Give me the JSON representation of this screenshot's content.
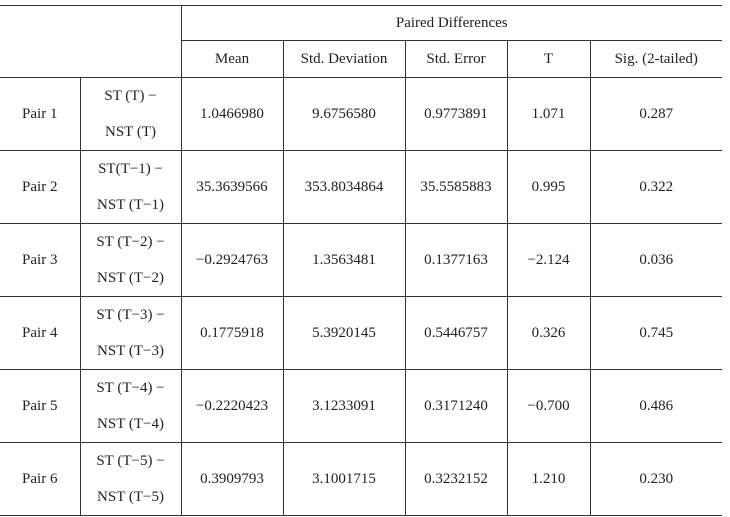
{
  "table": {
    "group_header": "Paired Differences",
    "columns": [
      "Mean",
      "Std. Deviation",
      "Std. Error",
      "T",
      "Sig. (2-tailed)"
    ],
    "rows": [
      {
        "pair": "Pair 1",
        "label": [
          "ST (T) −",
          "NST (T)"
        ],
        "values": [
          "1.0466980",
          "9.6756580",
          "0.9773891",
          "1.071",
          "0.287"
        ]
      },
      {
        "pair": "Pair 2",
        "label": [
          "ST(T−1) −",
          "NST (T−1)"
        ],
        "values": [
          "35.3639566",
          "353.8034864",
          "35.5585883",
          "0.995",
          "0.322"
        ]
      },
      {
        "pair": "Pair 3",
        "label": [
          "ST (T−2) −",
          "NST (T−2)"
        ],
        "values": [
          "−0.2924763",
          "1.3563481",
          "0.1377163",
          "−2.124",
          "0.036"
        ]
      },
      {
        "pair": "Pair 4",
        "label": [
          "ST (T−3) −",
          "NST (T−3)"
        ],
        "values": [
          "0.1775918",
          "5.3920145",
          "0.5446757",
          "0.326",
          "0.745"
        ]
      },
      {
        "pair": "Pair 5",
        "label": [
          "ST (T−4) −",
          "NST (T−4)"
        ],
        "values": [
          "−0.2220423",
          "3.1233091",
          "0.3171240",
          "−0.700",
          "0.486"
        ]
      },
      {
        "pair": "Pair 6",
        "label": [
          "ST (T−5) −",
          "NST (T−5)"
        ],
        "values": [
          "0.3909793",
          "3.1001715",
          "0.3232152",
          "1.210",
          "0.230"
        ]
      }
    ]
  }
}
